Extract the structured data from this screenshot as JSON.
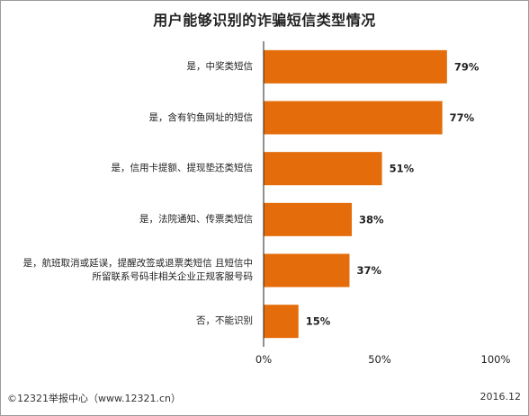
{
  "chart_data": {
    "type": "bar",
    "orientation": "horizontal",
    "title": "用户能够识别的诈骗短信类型情况",
    "categories": [
      "是，中奖类短信",
      "是，含有钓鱼网址的短信",
      "是，信用卡提额、提现垫还类短信",
      "是，法院通知、传票类短信",
      "是，航班取消或延误，提醒改签或退票类短信 且短信中所留联系号码非相关企业正规客服号码",
      "否，不能识别"
    ],
    "values": [
      79,
      77,
      51,
      38,
      37,
      15
    ],
    "data_labels": [
      "79%",
      "77%",
      "51%",
      "38%",
      "37%",
      "15%"
    ],
    "xlim": [
      0,
      100
    ],
    "x_ticks": [
      0,
      50,
      100
    ],
    "x_tick_labels": [
      "0%",
      "50%",
      "100%"
    ],
    "grid": false,
    "legend": "none",
    "bar_color": "#E46C0A"
  },
  "footer": {
    "source": "©12321举报中心（www.12321.cn）",
    "date": "2016.12"
  }
}
